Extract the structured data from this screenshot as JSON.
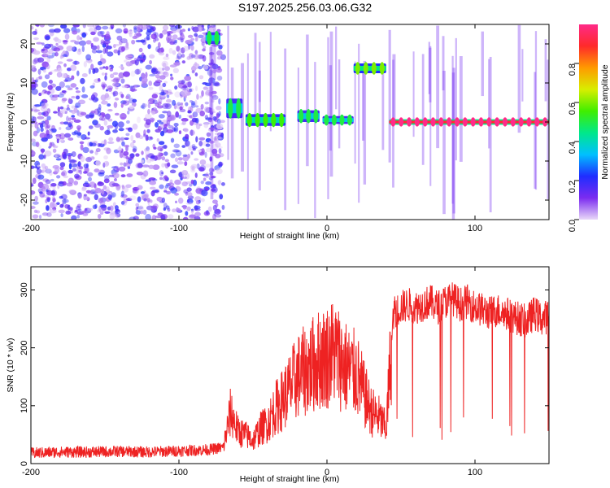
{
  "page_title": "S197.2025.256.03.06.G32",
  "colors": {
    "snr_line": "#ee2222",
    "frame": "#000000"
  },
  "chart_data": [
    {
      "type": "heatmap",
      "xlabel": "Height of straight line (km)",
      "ylabel": "Frequency (Hz)",
      "xlim": [
        -200,
        150
      ],
      "ylim": [
        -25,
        25
      ],
      "xticks": [
        "-200",
        "-100",
        "0",
        "100"
      ],
      "yticks": [
        "-20",
        "-10",
        "0",
        "10",
        "20"
      ],
      "colorbar": {
        "label": "Normalized spectral amplitude",
        "range": [
          0,
          1
        ],
        "ticks": [
          "0.0",
          "0.2",
          "0.4",
          "0.6",
          "0.8"
        ],
        "colors": [
          "#e8d8f8",
          "#7b2cf0",
          "#1f2dff",
          "#00c0ff",
          "#00e88a",
          "#40ee00",
          "#d8ee00",
          "#ff9a00",
          "#ff2a2a",
          "#ff2a88"
        ]
      },
      "features": [
        {
          "x_range": [
            -200,
            -70
          ],
          "freq_range": [
            -25,
            25
          ],
          "kind": "noise",
          "amplitude": 0.15
        },
        {
          "x_range": [
            -82,
            -72
          ],
          "freq_range": [
            20,
            23
          ],
          "kind": "blob",
          "amplitude": 0.35
        },
        {
          "x_range": [
            -68,
            -57
          ],
          "freq_range": [
            1,
            6
          ],
          "kind": "line",
          "amplitude": 0.35
        },
        {
          "x_range": [
            -55,
            -28
          ],
          "freq_range": [
            -1,
            2
          ],
          "kind": "line",
          "amplitude": 0.4
        },
        {
          "x_range": [
            -20,
            -5
          ],
          "freq_range": [
            0,
            3
          ],
          "kind": "line",
          "amplitude": 0.35
        },
        {
          "x_range": [
            -3,
            18
          ],
          "freq_range": [
            -0.5,
            1.5
          ],
          "kind": "line",
          "amplitude": 0.35
        },
        {
          "x_range": [
            18,
            40
          ],
          "freq_range": [
            12.5,
            15
          ],
          "kind": "line",
          "amplitude": 0.45
        },
        {
          "x_range": [
            42,
            150
          ],
          "freq_range": [
            -0.7,
            0.7
          ],
          "kind": "line",
          "amplitude": 0.9
        }
      ]
    },
    {
      "type": "line",
      "xlabel": "Height of straight line (km)",
      "ylabel": "SNR (10 * v/v)",
      "xlim": [
        -200,
        150
      ],
      "ylim": [
        0,
        340
      ],
      "xticks": [
        "-200",
        "-100",
        "0",
        "100"
      ],
      "yticks": [
        "0",
        "100",
        "200",
        "300"
      ],
      "series": [
        {
          "x": [
            -200,
            -180,
            -160,
            -140,
            -120,
            -100,
            -80,
            -70,
            -65,
            -60,
            -55,
            -50,
            -45,
            -40,
            -35,
            -30,
            -25,
            -20,
            -15,
            -10,
            -5,
            0,
            5,
            10,
            15,
            20,
            25,
            30,
            35,
            40,
            45,
            50,
            55,
            60,
            65,
            70,
            75,
            80,
            85,
            90,
            95,
            100,
            105,
            110,
            115,
            120,
            125,
            130,
            135,
            140,
            145,
            150
          ],
          "y": [
            18,
            20,
            20,
            21,
            20,
            22,
            24,
            28,
            90,
            55,
            50,
            40,
            60,
            70,
            95,
            110,
            130,
            150,
            160,
            170,
            180,
            185,
            195,
            175,
            160,
            155,
            120,
            90,
            80,
            60,
            260,
            270,
            275,
            270,
            275,
            280,
            270,
            280,
            285,
            275,
            280,
            270,
            265,
            260,
            265,
            260,
            255,
            250,
            245,
            260,
            250,
            255
          ]
        }
      ]
    }
  ]
}
